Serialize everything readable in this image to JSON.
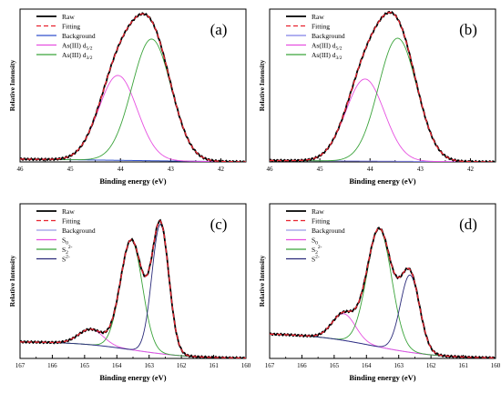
{
  "chart_data": [
    {
      "panel": "(a)",
      "type": "line",
      "xlabel": "Binding energy (eV)",
      "ylabel": "Relative Intensity",
      "xlim": [
        46,
        41.5
      ],
      "x_reversed": true,
      "xticks": [
        46,
        45,
        44,
        43,
        42
      ],
      "legend": [
        {
          "label": "Raw",
          "color": "#000000",
          "dash": "solid"
        },
        {
          "label": "Fitting",
          "color": "#e8222e",
          "dash": "dashed"
        },
        {
          "label": "Background",
          "color": "#3050cc",
          "dash": "solid"
        },
        {
          "label": "As(III) d",
          "sub": "5/2",
          "color": "#e64fe0",
          "dash": "solid"
        },
        {
          "label": "As(III) d",
          "sub": "3/2",
          "color": "#3aa33a",
          "dash": "solid"
        }
      ],
      "legend_position": "top-left",
      "ylim": [
        0,
        1.08
      ],
      "background": {
        "type": "linear",
        "x0": 46,
        "y0": 0.02,
        "x1": 41.5,
        "y1": 0.0
      },
      "peaks": [
        {
          "name": "As(III) d5/2",
          "center": 44.05,
          "height": 0.6,
          "fwhm": 0.9,
          "color": "#e64fe0"
        },
        {
          "name": "As(III) d3/2",
          "center": 43.38,
          "height": 0.86,
          "fwhm": 0.92,
          "color": "#3aa33a"
        }
      ]
    },
    {
      "panel": "(b)",
      "type": "line",
      "xlabel": "Binding energy (eV)",
      "ylabel": "Relative Intensity",
      "xlim": [
        46,
        41.5
      ],
      "x_reversed": true,
      "xticks": [
        46,
        45,
        44,
        43,
        42
      ],
      "legend": [
        {
          "label": "Raw",
          "color": "#000000",
          "dash": "solid"
        },
        {
          "label": "Fitting",
          "color": "#e8222e",
          "dash": "dashed"
        },
        {
          "label": "Background",
          "color": "#8080e6",
          "dash": "solid"
        },
        {
          "label": "As(III) d",
          "sub": "5/2",
          "color": "#e64fe0",
          "dash": "solid"
        },
        {
          "label": "As(III) d",
          "sub": "3/2",
          "color": "#3aa33a",
          "dash": "solid"
        }
      ],
      "legend_position": "top-left",
      "ylim": [
        0,
        1.08
      ],
      "background": {
        "type": "linear",
        "x0": 46,
        "y0": 0.01,
        "x1": 41.5,
        "y1": 0.0
      },
      "peaks": [
        {
          "name": "As(III) d5/2",
          "center": 44.1,
          "height": 0.58,
          "fwhm": 0.9,
          "color": "#e64fe0"
        },
        {
          "name": "As(III) d3/2",
          "center": 43.45,
          "height": 0.87,
          "fwhm": 0.9,
          "color": "#3aa33a"
        }
      ]
    },
    {
      "panel": "(c)",
      "type": "line",
      "xlabel": "Binding energy (eV)",
      "ylabel": "Relative Intensity",
      "xlim": [
        167,
        160
      ],
      "x_reversed": true,
      "xticks": [
        167,
        166,
        165,
        164,
        163,
        162,
        161,
        160
      ],
      "legend": [
        {
          "label": "Raw",
          "color": "#000000",
          "dash": "solid"
        },
        {
          "label": "Fitting",
          "color": "#e8222e",
          "dash": "dashed"
        },
        {
          "label": "Background",
          "color": "#9a9ae6",
          "dash": "solid"
        },
        {
          "label": "S",
          "sub": "0",
          "color": "#e64fe0",
          "dash": "solid"
        },
        {
          "label": "S",
          "sup": "2-",
          "sub": "2",
          "color": "#3aa33a",
          "dash": "solid"
        },
        {
          "label": "S",
          "sup": "2-",
          "color": "#2a2a7a",
          "dash": "solid"
        }
      ],
      "legend_position": "top-left",
      "ylim": [
        0,
        1.1
      ],
      "background": {
        "type": "sigmoid",
        "left": 0.12,
        "right": 0.0,
        "center": 163.5,
        "width": 0.9
      },
      "peaks": [
        {
          "name": "S0",
          "center": 164.8,
          "height": 0.11,
          "fwhm": 0.9,
          "color": "#e64fe0"
        },
        {
          "name": "S2 2-",
          "center": 163.55,
          "height": 0.78,
          "fwhm": 0.8,
          "color": "#3aa33a"
        },
        {
          "name": "S 2-",
          "center": 162.65,
          "height": 0.92,
          "fwhm": 0.62,
          "color": "#2a2a7a"
        }
      ]
    },
    {
      "panel": "(d)",
      "type": "line",
      "xlabel": "Binding energy (eV)",
      "ylabel": "Relative Intensity",
      "xlim": [
        167,
        160
      ],
      "x_reversed": true,
      "xticks": [
        167,
        166,
        165,
        164,
        163,
        162,
        161,
        160
      ],
      "legend": [
        {
          "label": "Raw",
          "color": "#000000",
          "dash": "solid"
        },
        {
          "label": "Fitting",
          "color": "#e8222e",
          "dash": "dashed"
        },
        {
          "label": "Background",
          "color": "#9a9ae6",
          "dash": "solid"
        },
        {
          "label": "S",
          "sub": "0",
          "color": "#e64fe0",
          "dash": "solid"
        },
        {
          "label": "S",
          "sup": "2-",
          "sub": "2",
          "color": "#3aa33a",
          "dash": "solid"
        },
        {
          "label": "S",
          "sup": "2-",
          "color": "#2a2a7a",
          "dash": "solid"
        }
      ],
      "legend_position": "top-left",
      "ylim": [
        0,
        1.1
      ],
      "background": {
        "type": "sigmoid",
        "left": 0.18,
        "right": 0.0,
        "center": 163.8,
        "width": 1.0
      },
      "peaks": [
        {
          "name": "S0",
          "center": 164.7,
          "height": 0.19,
          "fwhm": 0.85,
          "color": "#e64fe0"
        },
        {
          "name": "S2 2-",
          "center": 163.6,
          "height": 0.84,
          "fwhm": 0.9,
          "color": "#3aa33a"
        },
        {
          "name": "S 2-",
          "center": 162.65,
          "height": 0.55,
          "fwhm": 0.7,
          "color": "#2a2a7a"
        }
      ]
    }
  ]
}
